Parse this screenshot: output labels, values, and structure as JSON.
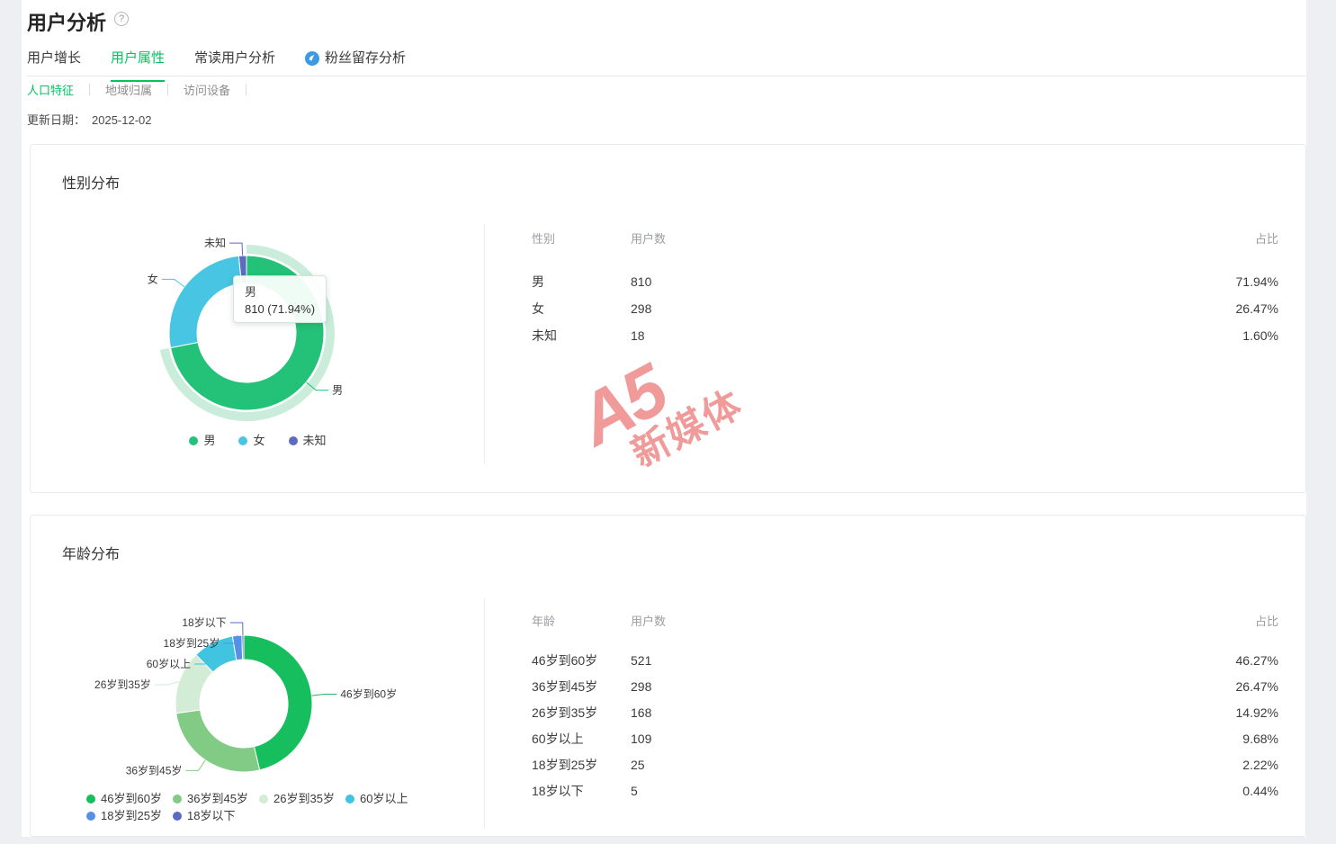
{
  "page": {
    "title": "用户分析"
  },
  "tabs": [
    {
      "label": "用户增长",
      "active": false
    },
    {
      "label": "用户属性",
      "active": true
    },
    {
      "label": "常读用户分析",
      "active": false
    },
    {
      "label": "粉丝留存分析",
      "active": false,
      "icon": "blue-badge-icon"
    }
  ],
  "subtabs": [
    {
      "label": "人口特征",
      "active": true
    },
    {
      "label": "地域归属",
      "active": false
    },
    {
      "label": "访问设备",
      "active": false
    }
  ],
  "update": {
    "label": "更新日期：",
    "date": "2025-12-02"
  },
  "watermark": {
    "line1": "A5",
    "line2": "新媒体",
    "color": "#F09A9A"
  },
  "gender_card": {
    "title": "性别分布",
    "tooltip": {
      "name": "男",
      "value": "810 (71.94%)"
    },
    "table": {
      "headers": [
        "性别",
        "用户数",
        "占比"
      ],
      "rows": [
        [
          "男",
          "810",
          "71.94%"
        ],
        [
          "女",
          "298",
          "26.47%"
        ],
        [
          "未知",
          "18",
          "1.60%"
        ]
      ]
    }
  },
  "age_card": {
    "title": "年龄分布",
    "table": {
      "headers": [
        "年龄",
        "用户数",
        "占比"
      ],
      "rows": [
        [
          "46岁到60岁",
          "521",
          "46.27%"
        ],
        [
          "36岁到45岁",
          "298",
          "26.47%"
        ],
        [
          "26岁到35岁",
          "168",
          "14.92%"
        ],
        [
          "60岁以上",
          "109",
          "9.68%"
        ],
        [
          "18岁到25岁",
          "25",
          "2.22%"
        ],
        [
          "18岁以下",
          "5",
          "0.44%"
        ]
      ]
    }
  },
  "chart_data": [
    {
      "type": "pie",
      "title": "性别分布",
      "labels": [
        "男",
        "女",
        "未知"
      ],
      "values": [
        810,
        298,
        18
      ],
      "percents": [
        "71.94%",
        "26.47%",
        "1.60%"
      ],
      "colors": [
        "#23C278",
        "#48C5E2",
        "#5C6AC0"
      ],
      "selected": 0,
      "selected_halo_color": "#CAEDDB",
      "legend_position": "bottom",
      "donut": true
    },
    {
      "type": "pie",
      "title": "年龄分布",
      "labels": [
        "46岁到60岁",
        "36岁到45岁",
        "26岁到35岁",
        "60岁以上",
        "18岁到25岁",
        "18岁以下"
      ],
      "values": [
        521,
        298,
        168,
        109,
        25,
        5
      ],
      "percents": [
        "46.27%",
        "26.47%",
        "14.92%",
        "9.68%",
        "2.22%",
        "0.44%"
      ],
      "colors": [
        "#17BE5E",
        "#82CB85",
        "#D2ECD5",
        "#41C4E0",
        "#568FE8",
        "#5C6AC0"
      ],
      "legend_position": "bottom",
      "donut": true
    }
  ]
}
